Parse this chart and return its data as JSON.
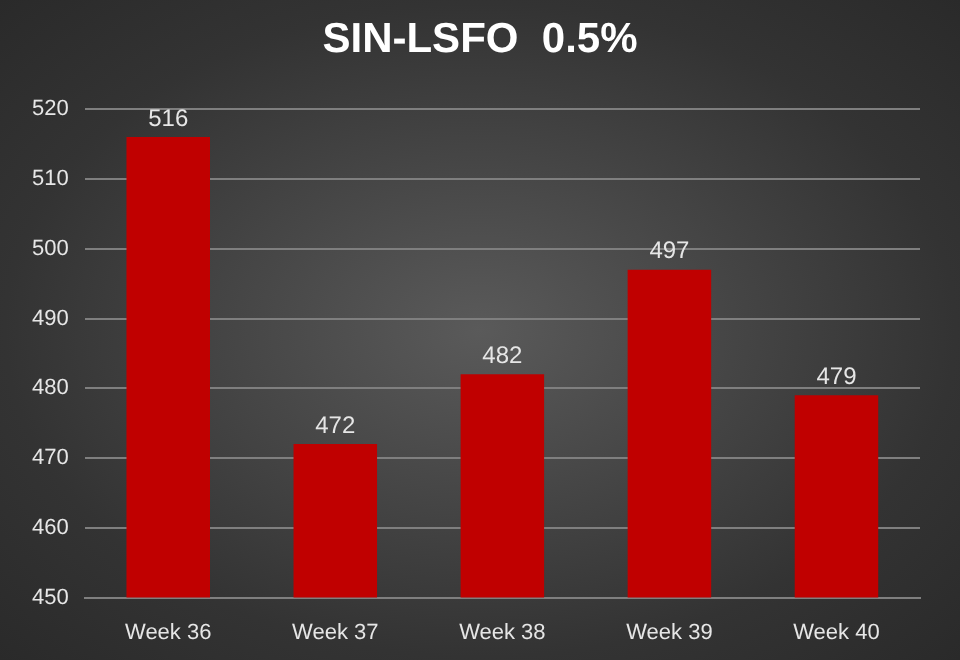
{
  "chart_data": {
    "type": "bar",
    "title": "SIN-LSFO  0.5%",
    "categories": [
      "Week 36",
      "Week 37",
      "Week 38",
      "Week 39",
      "Week 40"
    ],
    "values": [
      516,
      472,
      482,
      497,
      479
    ],
    "color": "#c00000",
    "ylim": [
      450,
      520
    ],
    "yticks": [
      450,
      460,
      470,
      480,
      490,
      500,
      510,
      520
    ],
    "grid": "y",
    "data_labels": true,
    "legend": false
  }
}
